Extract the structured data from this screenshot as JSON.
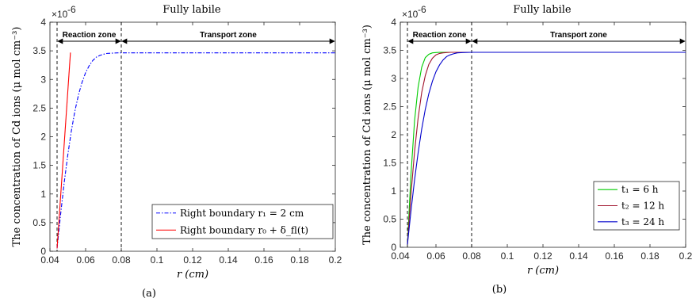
{
  "chart_data": [
    {
      "type": "line",
      "panel_label": "(a)",
      "title": "Fully labile",
      "xlabel": "r (cm)",
      "ylabel": "The concentration of Cd ions (μ mol cm⁻³)",
      "y_exponent_label": "×10",
      "y_exponent_power": "-6",
      "xlim": [
        0.04,
        0.2
      ],
      "ylim": [
        0,
        4
      ],
      "xticks": [
        "0.04",
        "0.06",
        "0.08",
        "0.1",
        "0.12",
        "0.14",
        "0.16",
        "0.18",
        "0.2"
      ],
      "yticks": [
        "0",
        "0.5",
        "1",
        "1.5",
        "2",
        "2.5",
        "3",
        "3.5",
        "4"
      ],
      "x_tick_values": [
        0.04,
        0.06,
        0.08,
        0.1,
        0.12,
        0.14,
        0.16,
        0.18,
        0.2
      ],
      "y_tick_values": [
        0,
        0.5,
        1,
        1.5,
        2,
        2.5,
        3,
        3.5,
        4
      ],
      "zones": [
        {
          "label": "Reaction zone",
          "from": 0.044,
          "to": 0.08
        },
        {
          "label": "Transport zone",
          "from": 0.08,
          "to": 0.2
        }
      ],
      "vlines": [
        0.044,
        0.08
      ],
      "legend_position": "bottom-right",
      "series": [
        {
          "name": "Right boundary r₁ = 2 cm",
          "color": "#0000ff",
          "style": "dashdot",
          "x": [
            0.044,
            0.046,
            0.048,
            0.05,
            0.052,
            0.054,
            0.056,
            0.058,
            0.06,
            0.062,
            0.064,
            0.066,
            0.068,
            0.07,
            0.072,
            0.075,
            0.078,
            0.08,
            0.09,
            0.1,
            0.12,
            0.14,
            0.16,
            0.18,
            0.2
          ],
          "y": [
            0.05,
            0.65,
            1.2,
            1.68,
            2.1,
            2.45,
            2.73,
            2.95,
            3.12,
            3.24,
            3.33,
            3.39,
            3.42,
            3.44,
            3.455,
            3.46,
            3.465,
            3.465,
            3.465,
            3.465,
            3.465,
            3.465,
            3.465,
            3.465,
            3.465
          ]
        },
        {
          "name": "Right boundary r₀ + δ_fl(t)",
          "color": "#ff0000",
          "style": "solid",
          "x": [
            0.044,
            0.0515
          ],
          "y": [
            0.05,
            3.47
          ]
        }
      ]
    },
    {
      "type": "line",
      "panel_label": "(b)",
      "title": "Fully labile",
      "xlabel": "r (cm)",
      "ylabel": "The concentration of Cd ions (μ mol cm⁻³)",
      "y_exponent_label": "×10",
      "y_exponent_power": "-6",
      "xlim": [
        0.04,
        0.2
      ],
      "ylim": [
        0,
        4
      ],
      "xticks": [
        "0.04",
        "0.06",
        "0.08",
        "0.1",
        "0.12",
        "0.14",
        "0.16",
        "0.18",
        "0.2"
      ],
      "yticks": [
        "0",
        "0.5",
        "1",
        "1.5",
        "2",
        "2.5",
        "3",
        "3.5",
        "4"
      ],
      "x_tick_values": [
        0.04,
        0.06,
        0.08,
        0.1,
        0.12,
        0.14,
        0.16,
        0.18,
        0.2
      ],
      "y_tick_values": [
        0,
        0.5,
        1,
        1.5,
        2,
        2.5,
        3,
        3.5,
        4
      ],
      "zones": [
        {
          "label": "Reaction zone",
          "from": 0.044,
          "to": 0.08
        },
        {
          "label": "Transport zone",
          "from": 0.08,
          "to": 0.2
        }
      ],
      "vlines": [
        0.044,
        0.08
      ],
      "legend_position": "bottom-right",
      "series": [
        {
          "name": "t₁ = 6 h",
          "color": "#00cc00",
          "style": "solid",
          "x": [
            0.044,
            0.046,
            0.048,
            0.05,
            0.052,
            0.054,
            0.056,
            0.058,
            0.06,
            0.062,
            0.064,
            0.066,
            0.07,
            0.08,
            0.1,
            0.2
          ],
          "y": [
            0.05,
            1.3,
            2.25,
            2.85,
            3.2,
            3.37,
            3.43,
            3.455,
            3.46,
            3.465,
            3.465,
            3.465,
            3.465,
            3.465,
            3.465,
            3.465
          ]
        },
        {
          "name": "t₂ = 12 h",
          "color": "#a0142d",
          "style": "solid",
          "x": [
            0.044,
            0.046,
            0.048,
            0.05,
            0.052,
            0.054,
            0.056,
            0.058,
            0.06,
            0.062,
            0.064,
            0.066,
            0.068,
            0.07,
            0.08,
            0.1,
            0.2
          ],
          "y": [
            0.05,
            0.95,
            1.7,
            2.3,
            2.75,
            3.05,
            3.25,
            3.36,
            3.42,
            3.445,
            3.455,
            3.46,
            3.465,
            3.465,
            3.465,
            3.465,
            3.465
          ]
        },
        {
          "name": "t₃ = 24 h",
          "color": "#0000cc",
          "style": "solid",
          "x": [
            0.044,
            0.046,
            0.048,
            0.05,
            0.052,
            0.054,
            0.056,
            0.058,
            0.06,
            0.062,
            0.064,
            0.066,
            0.068,
            0.07,
            0.072,
            0.075,
            0.08,
            0.1,
            0.2
          ],
          "y": [
            0.05,
            0.65,
            1.2,
            1.68,
            2.1,
            2.45,
            2.73,
            2.95,
            3.12,
            3.24,
            3.33,
            3.39,
            3.42,
            3.44,
            3.455,
            3.46,
            3.465,
            3.465,
            3.465
          ]
        }
      ]
    }
  ]
}
